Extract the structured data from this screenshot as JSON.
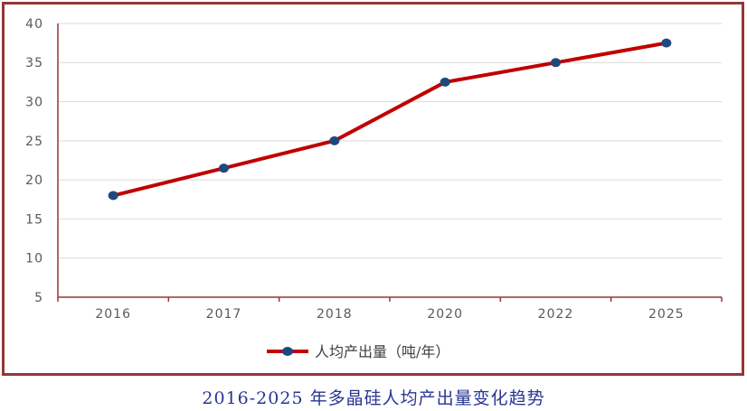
{
  "chart_data": {
    "type": "line",
    "title": "2016-2025 年多晶硅人均产出量变化趋势",
    "categories": [
      "2016",
      "2017",
      "2018",
      "2020",
      "2022",
      "2025"
    ],
    "series": [
      {
        "name": "人均产出量（吨/年）",
        "values": [
          18,
          21.5,
          25,
          32.5,
          35,
          37.5
        ]
      }
    ],
    "ylim": [
      5,
      40
    ],
    "yticks": [
      5,
      10,
      15,
      20,
      25,
      30,
      35,
      40
    ],
    "grid": "horizontal",
    "legend_position": "bottom",
    "colors": {
      "line": "#C00000",
      "marker": "#1F497D",
      "axis": "#953735",
      "frame_border": "#953735",
      "gridline": "#D9D9D9",
      "tick_label": "#595959",
      "legend_text": "#3F3F3F",
      "title_text": "#283593"
    }
  }
}
